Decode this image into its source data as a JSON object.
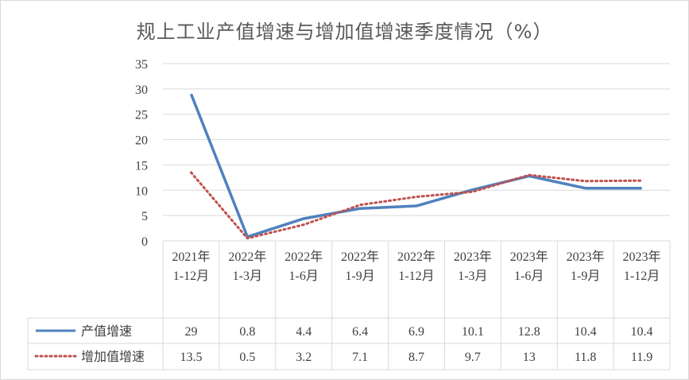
{
  "chart_data": {
    "type": "line",
    "title": "规上工业产值增速与增加值增速季度情况（%）",
    "categories": [
      [
        "2021年",
        "1-12月"
      ],
      [
        "2022年",
        "1-3月"
      ],
      [
        "2022年",
        "1-6月"
      ],
      [
        "2022年",
        "1-9月"
      ],
      [
        "2022年",
        "1-12月"
      ],
      [
        "2023年",
        "1-3月"
      ],
      [
        "2023年",
        "1-6月"
      ],
      [
        "2023年",
        "1-9月"
      ],
      [
        "2023年",
        "1-12月"
      ]
    ],
    "series": [
      {
        "name": "产值增速",
        "values": [
          29,
          0.8,
          4.4,
          6.4,
          6.9,
          10.1,
          12.8,
          10.4,
          10.4
        ],
        "color": "#4f81bd",
        "style": "solid"
      },
      {
        "name": "增加值增速",
        "values": [
          13.5,
          0.5,
          3.2,
          7.1,
          8.7,
          9.7,
          13,
          11.8,
          11.9
        ],
        "color": "#c0504d",
        "style": "dotted"
      }
    ],
    "ylim": [
      0,
      35
    ],
    "yticks": [
      0,
      5,
      10,
      15,
      20,
      25,
      30,
      35
    ],
    "grid": true,
    "legend": "data-table"
  }
}
